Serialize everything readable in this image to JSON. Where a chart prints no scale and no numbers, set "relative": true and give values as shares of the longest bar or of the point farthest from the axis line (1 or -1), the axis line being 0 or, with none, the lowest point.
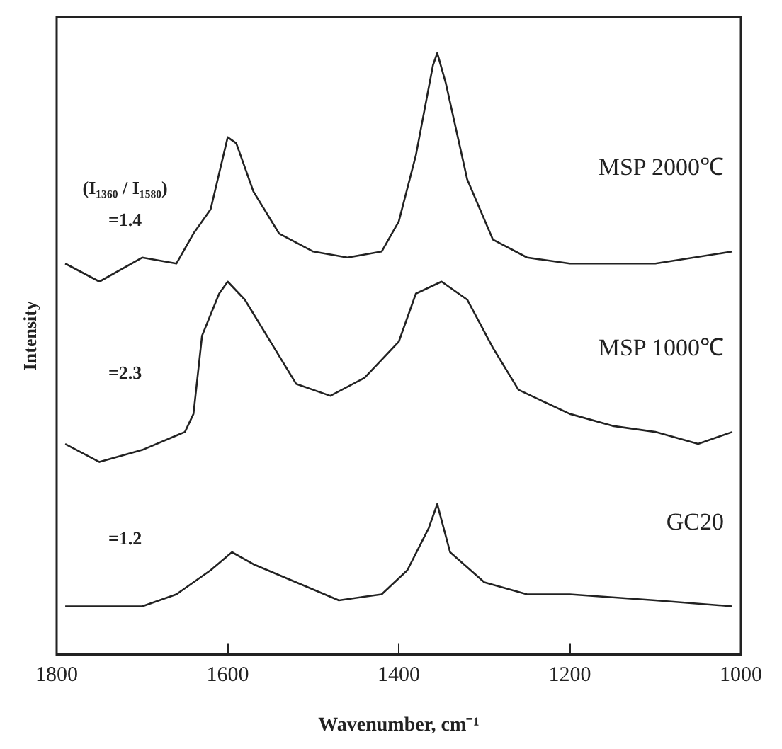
{
  "chart_data": {
    "type": "line",
    "relative": true,
    "xlabel": "Wavenumber, cm⁻¹",
    "ylabel": "Intensity",
    "xlim": [
      1800,
      1000
    ],
    "xticks": [
      1800,
      1600,
      1400,
      1200,
      1000
    ],
    "grid": false,
    "legend": false,
    "marker": "none",
    "line_style": "solid",
    "series": [
      {
        "name": "MSP 2000℃",
        "color": "#222222",
        "x": [
          1790,
          1750,
          1700,
          1660,
          1640,
          1620,
          1600,
          1590,
          1570,
          1540,
          1500,
          1460,
          1420,
          1400,
          1380,
          1360,
          1355,
          1345,
          1320,
          1290,
          1250,
          1200,
          1100,
          1010
        ],
        "values": [
          0.65,
          0.62,
          0.66,
          0.65,
          0.7,
          0.74,
          0.86,
          0.85,
          0.77,
          0.7,
          0.67,
          0.66,
          0.67,
          0.72,
          0.83,
          0.98,
          1,
          0.95,
          0.79,
          0.69,
          0.66,
          0.65,
          0.65,
          0.67
        ]
      },
      {
        "name": "MSP 1000℃",
        "color": "#222222",
        "x": [
          1790,
          1750,
          1700,
          1650,
          1640,
          1630,
          1610,
          1600,
          1580,
          1550,
          1520,
          1480,
          1440,
          1400,
          1380,
          1350,
          1320,
          1290,
          1260,
          1200,
          1150,
          1100,
          1050,
          1010
        ],
        "values": [
          0.35,
          0.32,
          0.34,
          0.37,
          0.4,
          0.53,
          0.6,
          0.62,
          0.59,
          0.52,
          0.45,
          0.43,
          0.46,
          0.52,
          0.6,
          0.62,
          0.59,
          0.51,
          0.44,
          0.4,
          0.38,
          0.37,
          0.35,
          0.37
        ]
      },
      {
        "name": "GC20",
        "color": "#222222",
        "x": [
          1790,
          1700,
          1660,
          1620,
          1595,
          1570,
          1520,
          1470,
          1420,
          1390,
          1365,
          1355,
          1340,
          1300,
          1250,
          1200,
          1100,
          1010
        ],
        "values": [
          0.08,
          0.08,
          0.1,
          0.14,
          0.17,
          0.15,
          0.12,
          0.09,
          0.1,
          0.14,
          0.21,
          0.25,
          0.17,
          0.12,
          0.1,
          0.1,
          0.09,
          0.08
        ]
      }
    ],
    "annotations": [
      "(I₁₃₆₀ / I₁₅₈₀)",
      "=1.4",
      "=2.3",
      "=1.2"
    ]
  }
}
